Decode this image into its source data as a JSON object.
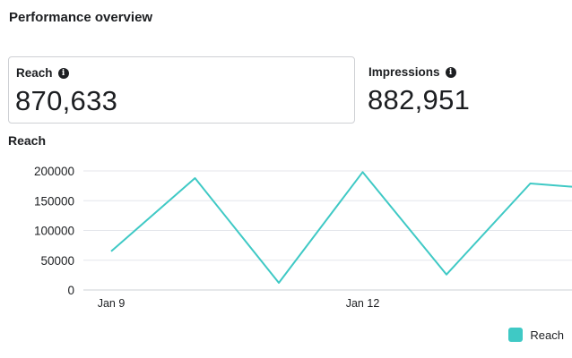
{
  "header": {
    "title": "Performance overview"
  },
  "metrics": [
    {
      "label": "Reach",
      "value": "870,633",
      "info_icon": "info-icon",
      "selected": true
    },
    {
      "label": "Impressions",
      "value": "882,951",
      "info_icon": "info-icon",
      "selected": false
    }
  ],
  "chart_section": {
    "title": "Reach"
  },
  "colors": {
    "series": "#3fc9c5",
    "grid": "#e4e6eb",
    "text": "#1c1e21"
  },
  "chart_data": {
    "type": "line",
    "title": "Reach",
    "xlabel": "",
    "ylabel": "",
    "x": [
      "Jan 9",
      "Jan 10",
      "Jan 11",
      "Jan 12",
      "Jan 13",
      "Jan 14",
      "Jan 15"
    ],
    "x_tick_labels_shown": [
      "Jan 9",
      "Jan 12"
    ],
    "y_ticks": [
      0,
      50000,
      100000,
      150000,
      200000
    ],
    "y_tick_labels": [
      "0",
      "50000",
      "100000",
      "150000",
      "200000"
    ],
    "ylim": [
      0,
      200000
    ],
    "grid": true,
    "legend_position": "bottom-right",
    "series": [
      {
        "name": "Reach",
        "values": [
          65000,
          188000,
          12000,
          198000,
          26000,
          179000,
          168000
        ]
      }
    ]
  }
}
